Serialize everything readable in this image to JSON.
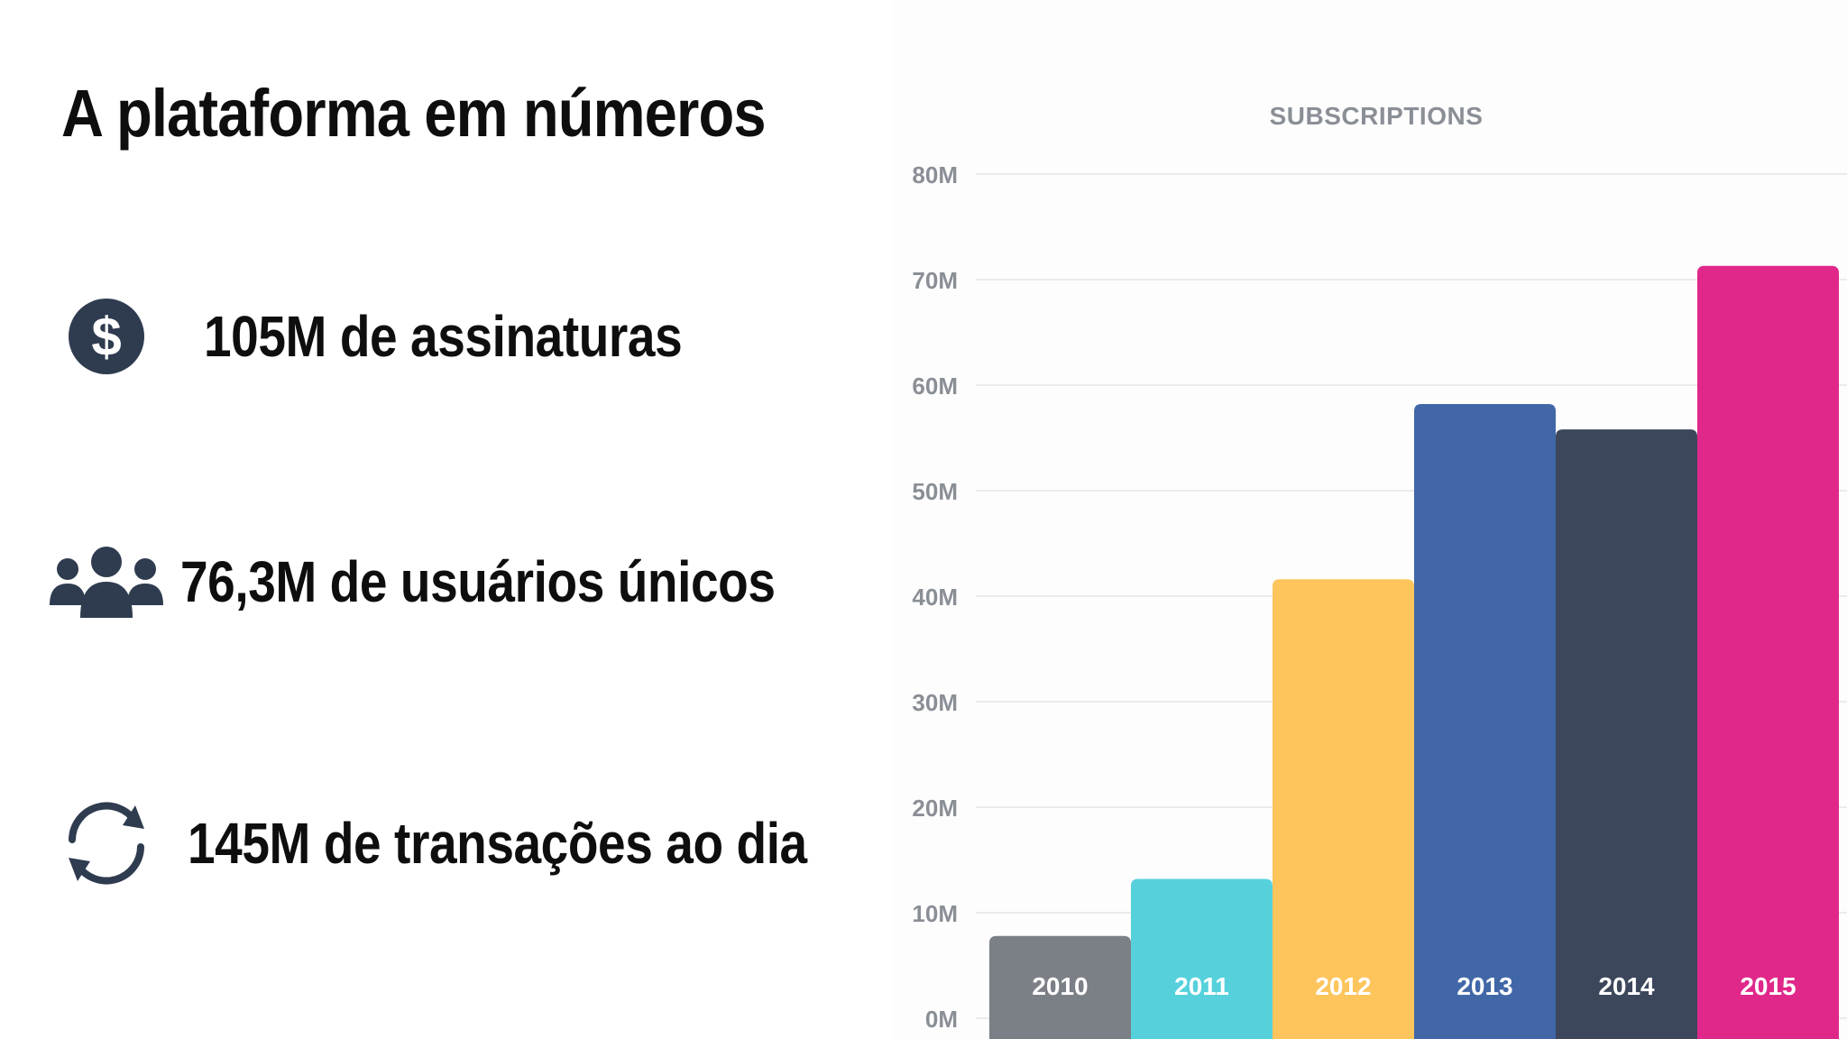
{
  "page": {
    "title": "A plataforma em números"
  },
  "stats": [
    {
      "icon": "dollar-icon",
      "text": "105M de assinaturas"
    },
    {
      "icon": "users-group-icon",
      "text": "76,3M de usuários únicos"
    },
    {
      "icon": "refresh-cycle-icon",
      "text": "145M de transações ao dia"
    }
  ],
  "colors": {
    "icon": "#2f3b4f",
    "text": "#0e0e0e",
    "axis_text": "#8a8f96",
    "grid": "#e3e5e8"
  },
  "chart_data": {
    "type": "bar",
    "title": "SUBSCRIPTIONS",
    "xlabel": "",
    "ylabel": "",
    "categories": [
      "2010",
      "2011",
      "2012",
      "2013",
      "2014",
      "2015"
    ],
    "values": [
      7.8,
      13.2,
      41.6,
      58.2,
      55.8,
      71.3
    ],
    "unit_suffix": "M",
    "ylim": [
      0,
      80
    ],
    "yticks": [
      0,
      10,
      20,
      30,
      40,
      50,
      60,
      70,
      80
    ],
    "ytick_labels": [
      "0M",
      "10M",
      "20M",
      "30M",
      "40M",
      "50M",
      "60M",
      "70M",
      "80M"
    ],
    "bar_colors": [
      "#7b7f86",
      "#56d1dc",
      "#fdc55c",
      "#4167a7",
      "#3c475c",
      "#e0288b"
    ],
    "grid": true,
    "legend": "none",
    "category_labels_inside_bars": true
  }
}
